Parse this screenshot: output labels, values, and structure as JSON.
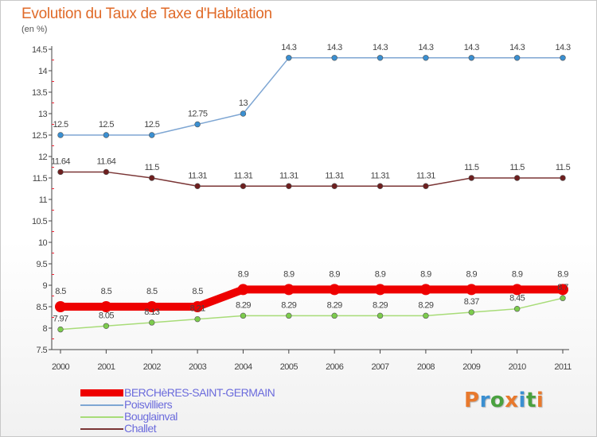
{
  "title": "Evolution du Taux de Taxe d'Habitation",
  "subtitle": "(en %)",
  "brand": {
    "text": "Proxiti",
    "letter_colors": [
      "#e8792d",
      "#3a8fd1",
      "#4aa13f",
      "#e8792d",
      "#3a8fd1",
      "#4aa13f",
      "#e8792d"
    ]
  },
  "chart_data": {
    "type": "line",
    "title": "Evolution du Taux de Taxe d'Habitation",
    "ylabel": "(en %)",
    "xlabel": "",
    "x": [
      "2000",
      "2001",
      "2002",
      "2003",
      "2004",
      "2005",
      "2006",
      "2007",
      "2008",
      "2009",
      "2010",
      "2011"
    ],
    "ylim": [
      7.5,
      14.5
    ],
    "yticks": [
      "7.5",
      "8",
      "8.5",
      "9",
      "9.5",
      "10",
      "10.5",
      "11",
      "11.5",
      "12",
      "12.5",
      "13",
      "13.5",
      "14",
      "14.5"
    ],
    "grid": false,
    "legend_position": "bottom-left",
    "series": [
      {
        "name": "BERCHèRES-SAINT-GERMAIN",
        "color": "#ee0000",
        "values": [
          8.5,
          8.5,
          8.5,
          8.5,
          8.9,
          8.9,
          8.9,
          8.9,
          8.9,
          8.9,
          8.9,
          8.9
        ],
        "labels": [
          "8.5",
          "8.5",
          "8.5",
          "8.5",
          "8.9",
          "8.9",
          "8.9",
          "8.9",
          "8.9",
          "8.9",
          "8.9",
          "8.9"
        ]
      },
      {
        "name": "Poisvilliers",
        "color": "#7ea6d3",
        "marker_color": "#3a8fd1",
        "values": [
          12.5,
          12.5,
          12.5,
          12.75,
          13,
          14.3,
          14.3,
          14.3,
          14.3,
          14.3,
          14.3,
          14.3
        ],
        "labels": [
          "12.5",
          "12.5",
          "12.5",
          "12.75",
          "13",
          "14.3",
          "14.3",
          "14.3",
          "14.3",
          "14.3",
          "14.3",
          "14.3"
        ]
      },
      {
        "name": "Bouglainval",
        "color": "#a8dc78",
        "marker_color": "#7ccc4c",
        "values": [
          7.97,
          8.05,
          8.13,
          8.21,
          8.29,
          8.29,
          8.29,
          8.29,
          8.29,
          8.37,
          8.45,
          8.7
        ],
        "labels": [
          "7.97",
          "8.05",
          "8.13",
          "8.21",
          "8.29",
          "8.29",
          "8.29",
          "8.29",
          "8.29",
          "8.37",
          "8.45",
          "8.7"
        ]
      },
      {
        "name": "Challet",
        "color": "#7a3535",
        "marker_color": "#6e1f1f",
        "values": [
          11.64,
          11.64,
          11.5,
          11.31,
          11.31,
          11.31,
          11.31,
          11.31,
          11.31,
          11.5,
          11.5,
          11.5
        ],
        "labels": [
          "11.64",
          "11.64",
          "11.5",
          "11.31",
          "11.31",
          "11.31",
          "11.31",
          "11.31",
          "11.31",
          "11.5",
          "11.5",
          "11.5"
        ]
      }
    ]
  }
}
